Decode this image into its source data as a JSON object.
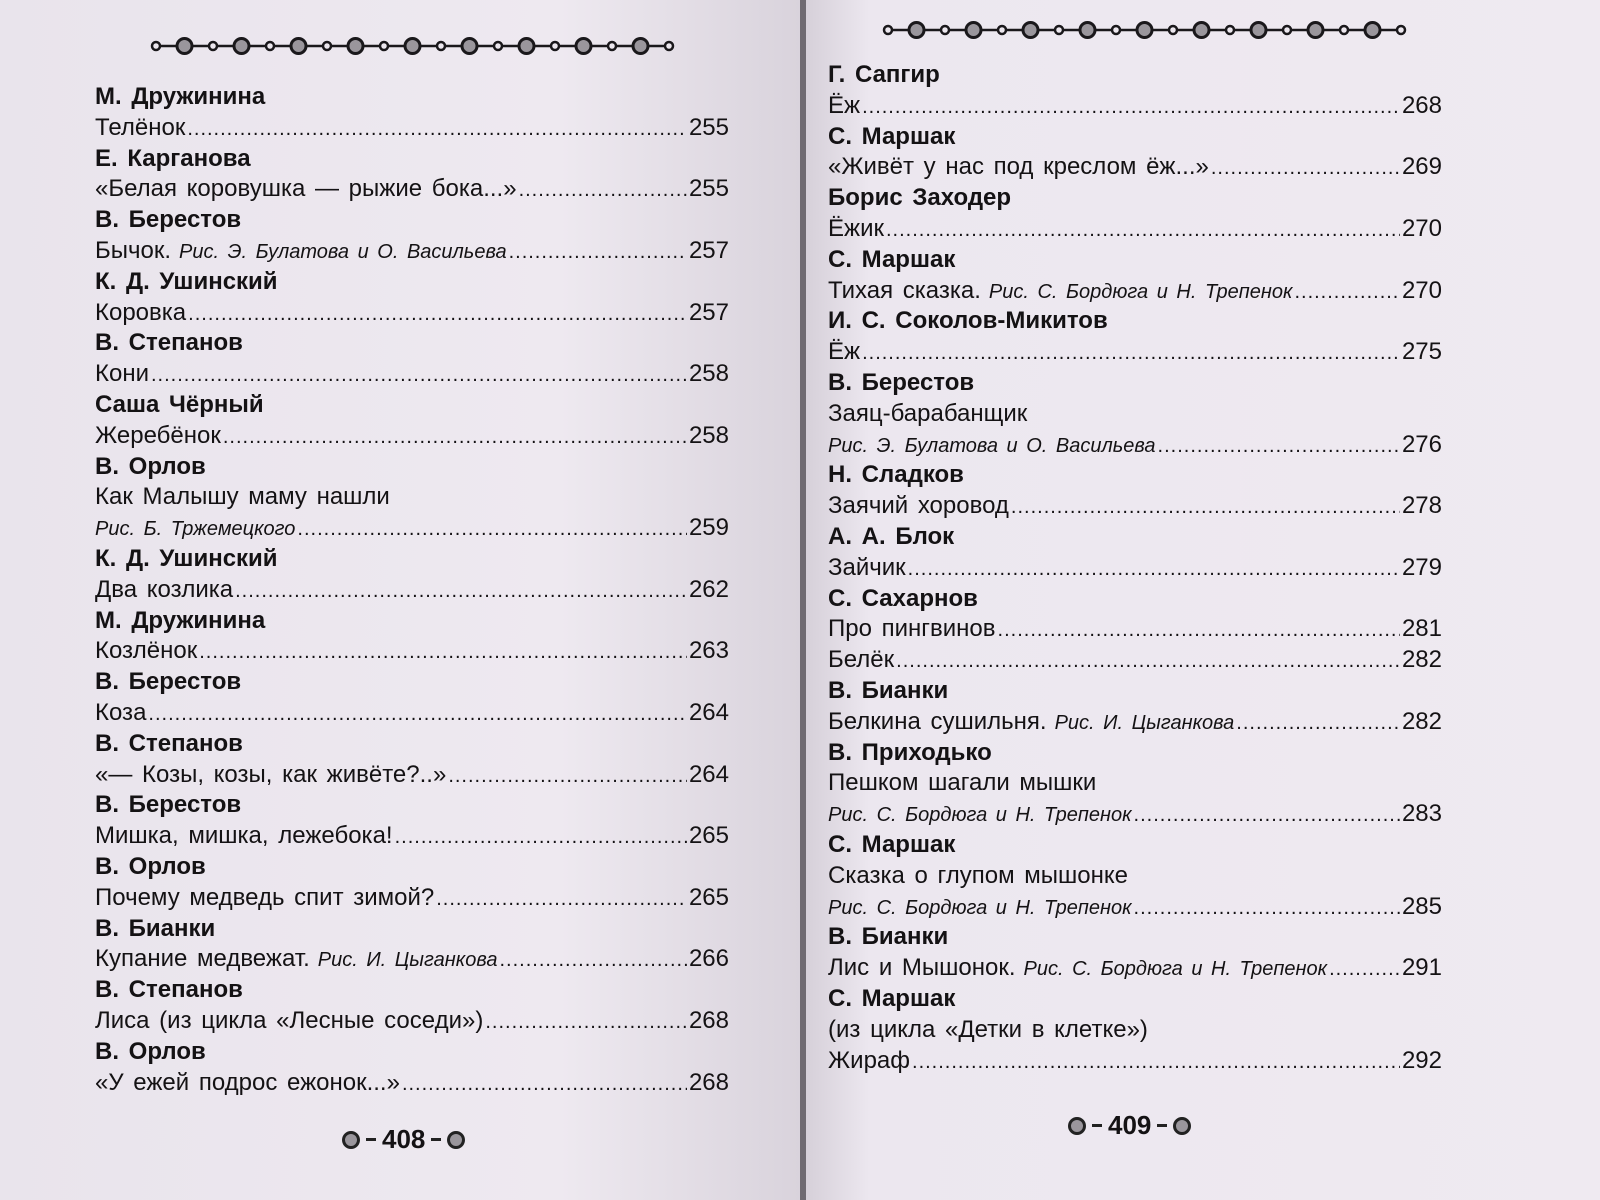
{
  "left_page": {
    "folio": "408",
    "entries": [
      {
        "author": "М. Дружинина",
        "lines": [
          {
            "t": "Телёнок",
            "p": "255"
          }
        ]
      },
      {
        "author": "Е. Карганова",
        "lines": [
          {
            "t": "«Белая коровушка — рыжие бока...»",
            "p": "255"
          }
        ]
      },
      {
        "author": "В. Берестов",
        "lines": [
          {
            "t": "Бычок.",
            "c": "Рис. Э. Булатова и О. Васильева",
            "p": "257"
          }
        ]
      },
      {
        "author": "К. Д. Ушинский",
        "lines": [
          {
            "t": "Коровка",
            "p": "257"
          }
        ]
      },
      {
        "author": "В. Степанов",
        "lines": [
          {
            "t": "Кони",
            "p": "258"
          }
        ]
      },
      {
        "author": "Саша Чёрный",
        "lines": [
          {
            "t": "Жеребёнок",
            "p": "258"
          }
        ]
      },
      {
        "author": "В. Орлов",
        "lines": [
          {
            "t": "Как Малышу маму нашли"
          },
          {
            "c": "Рис. Б. Тржемецкого",
            "p": "259"
          }
        ]
      },
      {
        "author": "К. Д. Ушинский",
        "lines": [
          {
            "t": "Два козлика",
            "p": "262"
          }
        ]
      },
      {
        "author": "М. Дружинина",
        "lines": [
          {
            "t": "Козлёнок",
            "p": "263"
          }
        ]
      },
      {
        "author": "В. Берестов",
        "lines": [
          {
            "t": "Коза",
            "p": "264"
          }
        ]
      },
      {
        "author": "В. Степанов",
        "lines": [
          {
            "t": "«— Козы, козы, как живёте?..»",
            "p": "264"
          }
        ]
      },
      {
        "author": "В. Берестов",
        "lines": [
          {
            "t": "Мишка, мишка, лежебока!",
            "p": "265"
          }
        ]
      },
      {
        "author": "В. Орлов",
        "lines": [
          {
            "t": "Почему медведь спит зимой?",
            "p": "265"
          }
        ]
      },
      {
        "author": "В. Бианки",
        "lines": [
          {
            "t": "Купание медвежат.",
            "c": "Рис. И. Цыганкова",
            "p": "266"
          }
        ]
      },
      {
        "author": "В. Степанов",
        "lines": [
          {
            "t": "Лиса (из цикла «Лесные соседи»)",
            "p": "268"
          }
        ]
      },
      {
        "author": "В. Орлов",
        "lines": [
          {
            "t": "«У ежей подрос ежонок...»",
            "p": "268"
          }
        ]
      }
    ]
  },
  "right_page": {
    "folio": "409",
    "entries": [
      {
        "author": "Г. Сапгир",
        "lines": [
          {
            "t": "Ёж",
            "p": "268"
          }
        ]
      },
      {
        "author": "С. Маршак",
        "lines": [
          {
            "t": "«Живёт у нас под креслом ёж...»",
            "p": "269"
          }
        ]
      },
      {
        "author": "Борис Заходер",
        "lines": [
          {
            "t": "Ёжик",
            "p": "270"
          }
        ]
      },
      {
        "author": "С. Маршак",
        "lines": [
          {
            "t": "Тихая сказка.",
            "c": "Рис. С. Бордюга и Н. Трепенок",
            "p": "270"
          }
        ]
      },
      {
        "author": "И. С. Соколов-Микитов",
        "lines": [
          {
            "t": "Ёж",
            "p": "275"
          }
        ]
      },
      {
        "author": "В. Берестов",
        "lines": [
          {
            "t": "Заяц-барабанщик"
          },
          {
            "c": "Рис. Э. Булатова и О. Васильева",
            "p": "276"
          }
        ]
      },
      {
        "author": "Н. Сладков",
        "lines": [
          {
            "t": "Заячий хоровод",
            "p": "278"
          }
        ]
      },
      {
        "author": "А. А. Блок",
        "lines": [
          {
            "t": "Зайчик",
            "p": "279"
          }
        ]
      },
      {
        "author": "С. Сахарнов",
        "lines": [
          {
            "t": "Про пингвинов",
            "p": "281"
          },
          {
            "t": "Белёк",
            "p": "282"
          }
        ]
      },
      {
        "author": "В. Бианки",
        "lines": [
          {
            "t": "Белкина сушильня.",
            "c": "Рис. И. Цыганкова",
            "p": "282"
          }
        ]
      },
      {
        "author": "В. Приходько",
        "lines": [
          {
            "t": "Пешком шагали мышки"
          },
          {
            "c": "Рис. С. Бордюга и Н. Трепенок",
            "p": "283"
          }
        ]
      },
      {
        "author": "С. Маршак",
        "lines": [
          {
            "t": "Сказка о глупом мышонке"
          },
          {
            "c": "Рис. С. Бордюга и Н. Трепенок",
            "p": "285"
          }
        ]
      },
      {
        "author": "В. Бианки",
        "lines": [
          {
            "t": "Лис и Мышонок.",
            "c": "Рис. С. Бордюга и Н. Трепенок",
            "p": "291"
          }
        ]
      },
      {
        "author": "С. Маршак",
        "lines": [
          {
            "t": "(из цикла «Детки в клетке»)"
          },
          {
            "t": "Жираф",
            "p": "292"
          }
        ]
      }
    ]
  },
  "decor": {
    "chain_icon": "ring-chain-ornament",
    "ink": "#1a181b",
    "paper": "#ece7ee"
  }
}
